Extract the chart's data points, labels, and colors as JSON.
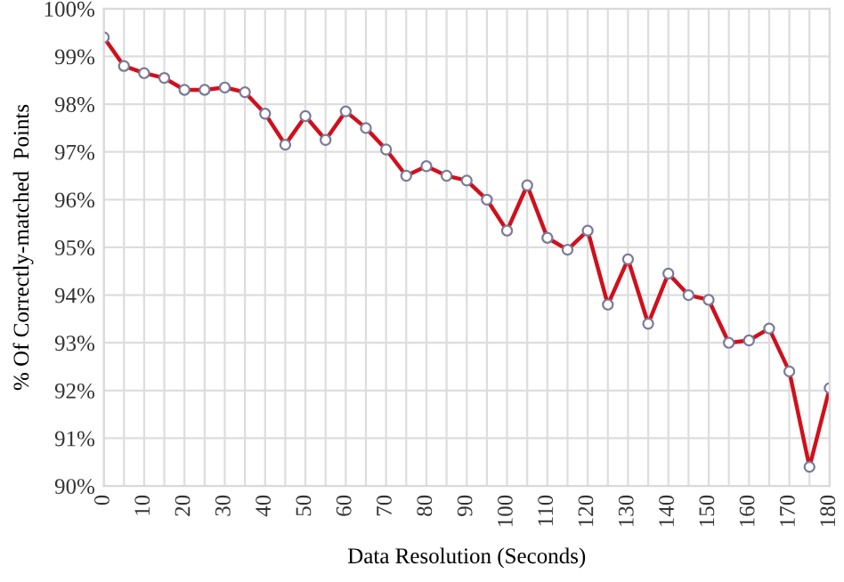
{
  "chart_data": {
    "type": "line",
    "xlabel": "Data Resolution (Seconds)",
    "ylabel": "% Of Correctly-matched  Points",
    "x": [
      0,
      5,
      10,
      15,
      20,
      25,
      30,
      35,
      40,
      45,
      50,
      55,
      60,
      65,
      70,
      75,
      80,
      85,
      90,
      95,
      100,
      105,
      110,
      115,
      120,
      125,
      130,
      135,
      140,
      145,
      150,
      155,
      160,
      165,
      170,
      175,
      180
    ],
    "series": [
      {
        "color": "#d0101c",
        "values": [
          99.4,
          98.8,
          98.65,
          98.55,
          98.3,
          98.3,
          98.35,
          98.25,
          97.8,
          97.15,
          97.75,
          97.25,
          97.85,
          97.5,
          97.05,
          96.5,
          96.7,
          96.5,
          96.4,
          96.0,
          95.35,
          96.3,
          95.2,
          94.95,
          95.35,
          93.8,
          94.75,
          93.4,
          94.45,
          94.0,
          93.9,
          93.0,
          93.05,
          93.3,
          92.4,
          90.4,
          92.05
        ]
      }
    ],
    "marker": "circle",
    "line_style": "solid",
    "grid": true,
    "xlim": [
      0,
      180
    ],
    "xticks": [
      0,
      {
        "value": 5,
        "label": null
      },
      10,
      {
        "value": 15,
        "label": null
      },
      20,
      {
        "value": 25,
        "label": null
      },
      30,
      {
        "value": 35,
        "label": null
      },
      40,
      {
        "value": 45,
        "label": null
      },
      50,
      {
        "value": 55,
        "label": null
      },
      60,
      {
        "value": 65,
        "label": null
      },
      70,
      {
        "value": 75,
        "label": null
      },
      80,
      {
        "value": 85,
        "label": null
      },
      90,
      {
        "value": 95,
        "label": null
      },
      100,
      {
        "value": 105,
        "label": null
      },
      110,
      {
        "value": 115,
        "label": null
      },
      120,
      {
        "value": 125,
        "label": null
      },
      130,
      {
        "value": 135,
        "label": null
      },
      140,
      {
        "value": 145,
        "label": null
      },
      150,
      {
        "value": 155,
        "label": null
      },
      160,
      {
        "value": 165,
        "label": null
      },
      170,
      {
        "value": 175,
        "label": null
      },
      180
    ],
    "ylim": [
      90,
      100
    ],
    "yticks": [
      {
        "value": 90,
        "label": "90%"
      },
      {
        "value": 91,
        "label": "91%"
      },
      {
        "value": 92,
        "label": "92%"
      },
      {
        "value": 93,
        "label": "93%"
      },
      {
        "value": 94,
        "label": "94%"
      },
      {
        "value": 95,
        "label": "95%"
      },
      {
        "value": 96,
        "label": "96%"
      },
      {
        "value": 97,
        "label": "97%"
      },
      {
        "value": 98,
        "label": "98%"
      },
      {
        "value": 99,
        "label": "99%"
      },
      {
        "value": 100,
        "label": "100%"
      }
    ]
  }
}
